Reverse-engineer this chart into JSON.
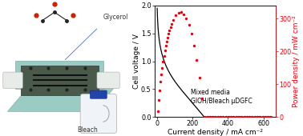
{
  "xlabel": "Current density / mA cm⁻²",
  "ylabel_left": "Cell voltage / V",
  "ylabel_right": "Power density / mW cm⁻²",
  "annotation": "Mixed media\nGlOH/Bleach μDGFC",
  "xlim": [
    -15,
    670
  ],
  "ylim_left": [
    0.0,
    2.0
  ],
  "ylim_right": [
    0.0,
    340
  ],
  "yticks_left": [
    0.0,
    0.5,
    1.0,
    1.5,
    2.0
  ],
  "yticks_right": [
    0,
    100,
    200,
    300
  ],
  "xticks": [
    0,
    200,
    400,
    600
  ],
  "voltage_color": "#000000",
  "power_color": "#e8000e",
  "background": "#ffffff",
  "annotation_fontsize": 5.5,
  "label_fontsize": 6.5,
  "tick_fontsize": 5.8
}
